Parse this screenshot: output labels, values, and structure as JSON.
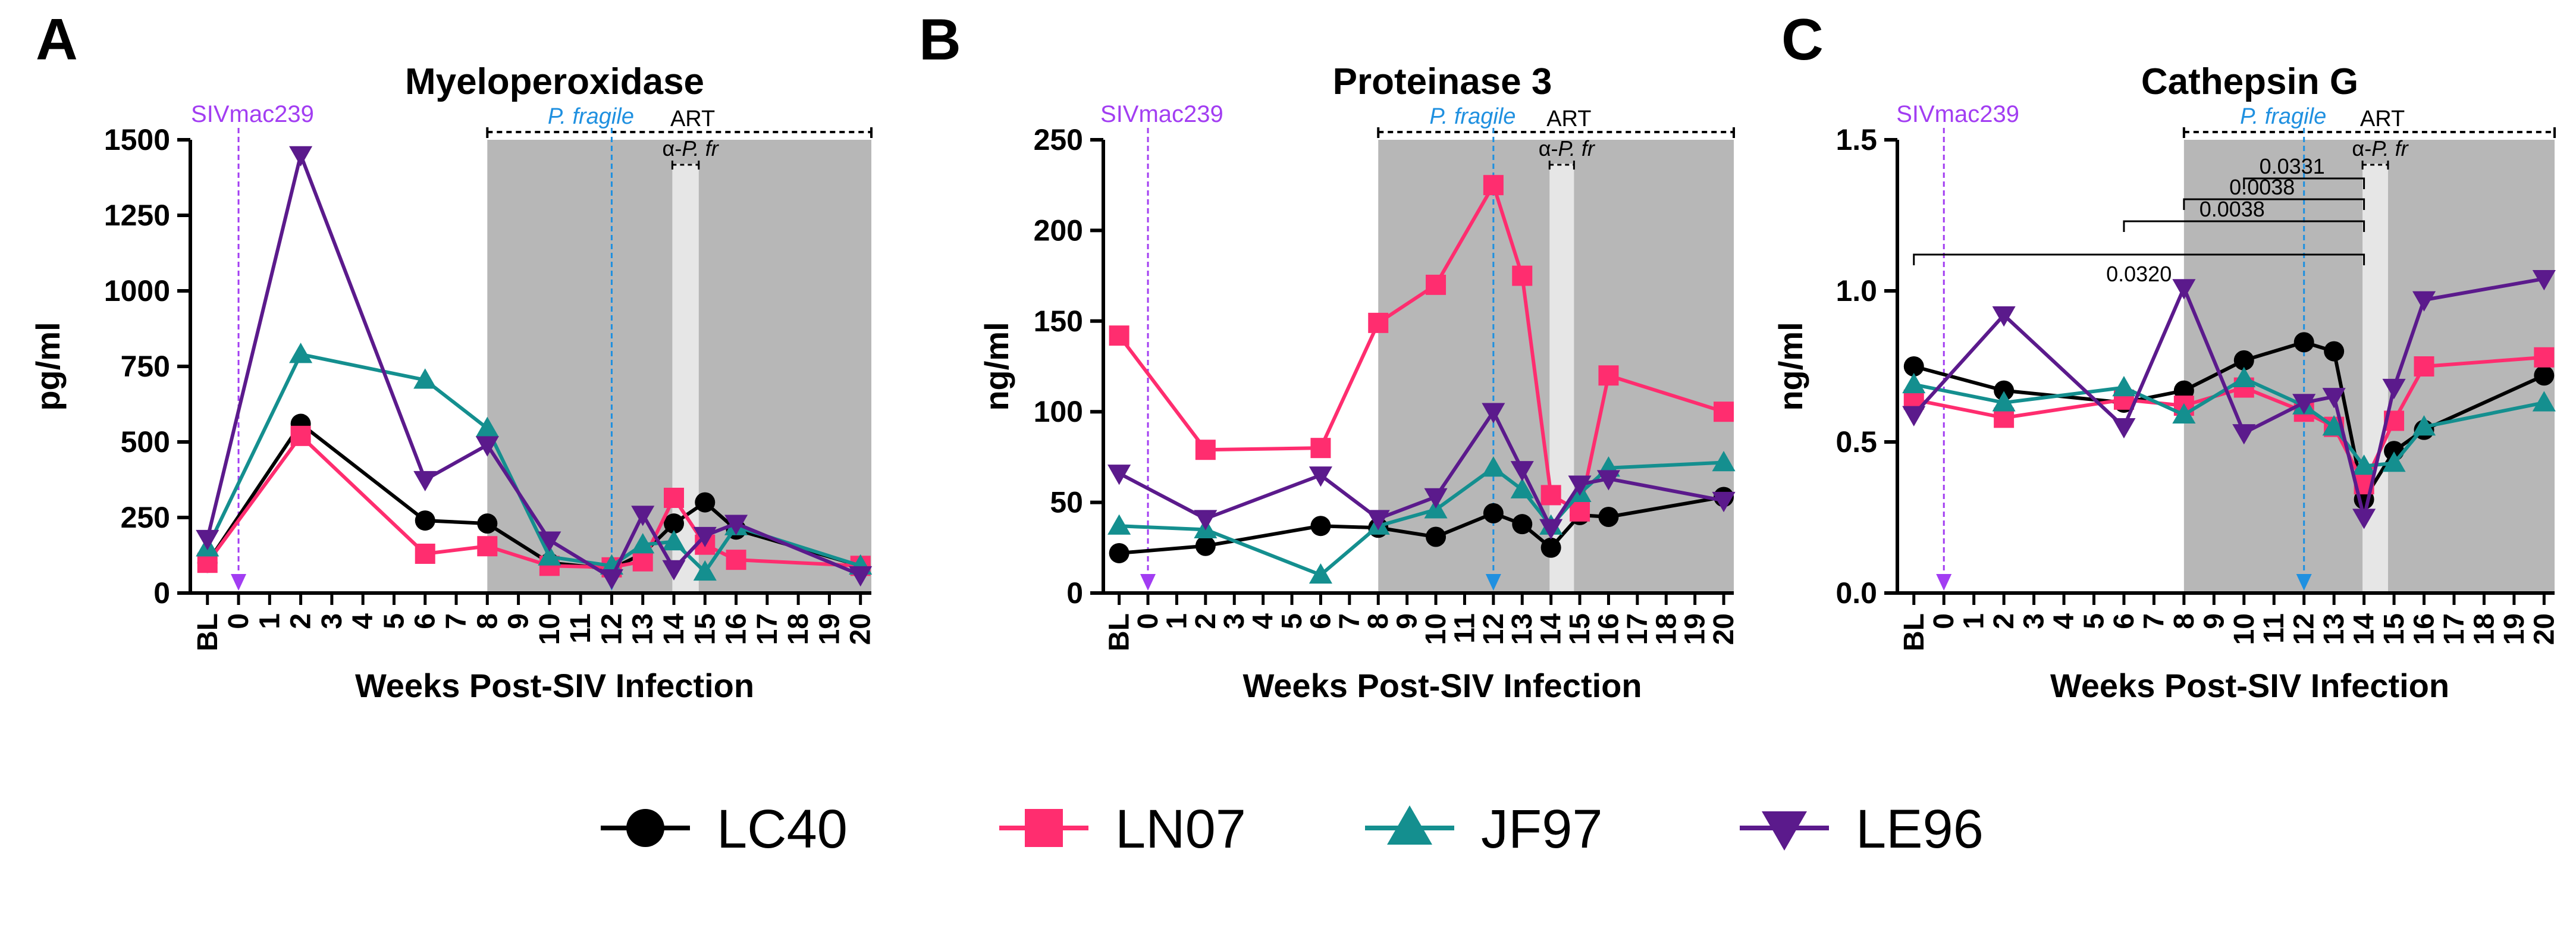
{
  "figure": {
    "colors": {
      "LC40": "#000000",
      "LN07": "#ff2d6f",
      "JF97": "#148f8f",
      "LE96": "#5b1a8c",
      "siv": "#a23df2",
      "pfragile": "#1f90e0",
      "shade": "#b7b7b7",
      "art_band": "#e6e6e6"
    },
    "annotation_labels": {
      "siv": "SIVmac239",
      "pfragile": "P. fragile",
      "art": "ART",
      "apfr_prefix": "α-",
      "apfr_italic": "P. fr"
    }
  },
  "legend": [
    {
      "name": "LC40",
      "marker": "circle"
    },
    {
      "name": "LN07",
      "marker": "square"
    },
    {
      "name": "JF97",
      "marker": "triangle-up"
    },
    {
      "name": "LE96",
      "marker": "triangle-down"
    }
  ],
  "chart_data": [
    {
      "panel": "A",
      "type": "line",
      "title": "Myeloperoxidase",
      "xlabel": "Weeks Post-SIV Infection",
      "ylabel": "pg/ml",
      "ylim": [
        0,
        1500
      ],
      "yticks": [
        0,
        250,
        500,
        750,
        1000,
        1250,
        1500
      ],
      "ytick_labels": [
        "0",
        "250",
        "500",
        "750",
        "1000",
        "1250",
        "1500"
      ],
      "xticks": [
        "BL",
        "0",
        "1",
        "2",
        "3",
        "4",
        "5",
        "6",
        "7",
        "8",
        "9",
        "10",
        "11",
        "12",
        "13",
        "14",
        "15",
        "16",
        "17",
        "18",
        "19",
        "20"
      ],
      "pfragile_period_weeks": [
        8,
        20
      ],
      "art_band_weeks": [
        14,
        15
      ],
      "siv_week": 0,
      "pfragile_week": 12,
      "series": [
        {
          "name": "LC40",
          "x": [
            "BL",
            2,
            6,
            8,
            10,
            12,
            13,
            14,
            15,
            16,
            20
          ],
          "values": [
            100,
            560,
            240,
            230,
            100,
            80,
            130,
            230,
            300,
            210,
            90
          ]
        },
        {
          "name": "LN07",
          "x": [
            "BL",
            2,
            6,
            8,
            10,
            12,
            13,
            14,
            15,
            16,
            20
          ],
          "values": [
            100,
            520,
            130,
            155,
            90,
            85,
            105,
            315,
            160,
            110,
            90
          ]
        },
        {
          "name": "JF97",
          "x": [
            "BL",
            2,
            6,
            8,
            10,
            12,
            13,
            14,
            15,
            16,
            20
          ],
          "values": [
            150,
            790,
            705,
            545,
            120,
            90,
            160,
            170,
            70,
            220,
            90
          ]
        },
        {
          "name": "LE96",
          "x": [
            "BL",
            2,
            6,
            8,
            10,
            12,
            13,
            14,
            15,
            16,
            20
          ],
          "values": [
            180,
            1450,
            375,
            490,
            175,
            50,
            260,
            80,
            190,
            230,
            60
          ]
        }
      ],
      "brackets": []
    },
    {
      "panel": "B",
      "type": "line",
      "title": "Proteinase 3",
      "xlabel": "Weeks Post-SIV Infection",
      "ylabel": "ng/ml",
      "ylim": [
        0,
        250
      ],
      "yticks": [
        0,
        50,
        100,
        150,
        200,
        250
      ],
      "ytick_labels": [
        "0",
        "50",
        "100",
        "150",
        "200",
        "250"
      ],
      "xticks": [
        "BL",
        "0",
        "1",
        "2",
        "3",
        "4",
        "5",
        "6",
        "7",
        "8",
        "9",
        "10",
        "11",
        "12",
        "13",
        "14",
        "15",
        "16",
        "17",
        "18",
        "19",
        "20"
      ],
      "pfragile_period_weeks": [
        8,
        20
      ],
      "art_band_weeks": [
        14,
        15
      ],
      "siv_week": 0,
      "pfragile_week": 12,
      "series": [
        {
          "name": "LC40",
          "x": [
            "BL",
            2,
            6,
            8,
            10,
            12,
            13,
            14,
            15,
            16,
            20
          ],
          "values": [
            22,
            26,
            37,
            36,
            31,
            44,
            38,
            25,
            43,
            42,
            53
          ]
        },
        {
          "name": "LN07",
          "x": [
            "BL",
            2,
            6,
            8,
            10,
            12,
            13,
            14,
            15,
            16,
            20
          ],
          "values": [
            142,
            79,
            80,
            149,
            170,
            225,
            175,
            54,
            45,
            120,
            100
          ]
        },
        {
          "name": "JF97",
          "x": [
            "BL",
            2,
            6,
            8,
            10,
            12,
            13,
            14,
            15,
            16,
            20
          ],
          "values": [
            37,
            35,
            10,
            37,
            46,
            69,
            57,
            37,
            55,
            69,
            72
          ]
        },
        {
          "name": "LE96",
          "x": [
            "BL",
            2,
            6,
            8,
            10,
            12,
            13,
            14,
            15,
            16,
            20
          ],
          "values": [
            66,
            41,
            65,
            41,
            53,
            100,
            68,
            36,
            60,
            63,
            51
          ]
        }
      ],
      "brackets": []
    },
    {
      "panel": "C",
      "type": "line",
      "title": "Cathepsin G",
      "xlabel": "Weeks Post-SIV Infection",
      "ylabel": "ng/ml",
      "ylim": [
        0,
        1.5
      ],
      "yticks": [
        0,
        0.5,
        1.0,
        1.5
      ],
      "ytick_labels": [
        "0.0",
        "0.5",
        "1.0",
        "1.5"
      ],
      "xticks": [
        "BL",
        "0",
        "1",
        "2",
        "3",
        "4",
        "5",
        "6",
        "7",
        "8",
        "9",
        "10",
        "11",
        "12",
        "13",
        "14",
        "15",
        "16",
        "17",
        "18",
        "19",
        "20"
      ],
      "pfragile_period_weeks": [
        8,
        20
      ],
      "art_band_weeks": [
        14,
        15
      ],
      "siv_week": 0,
      "pfragile_week": 12,
      "series": [
        {
          "name": "LC40",
          "x": [
            "BL",
            2,
            6,
            8,
            10,
            12,
            13,
            14,
            15,
            16,
            20
          ],
          "values": [
            0.75,
            0.67,
            0.63,
            0.67,
            0.77,
            0.83,
            0.8,
            0.31,
            0.47,
            0.54,
            0.72
          ]
        },
        {
          "name": "LN07",
          "x": [
            "BL",
            2,
            6,
            8,
            10,
            12,
            13,
            14,
            15,
            16,
            20
          ],
          "values": [
            0.64,
            0.58,
            0.64,
            0.62,
            0.68,
            0.6,
            0.55,
            0.36,
            0.57,
            0.75,
            0.78
          ]
        },
        {
          "name": "JF97",
          "x": [
            "BL",
            2,
            6,
            8,
            10,
            12,
            13,
            14,
            15,
            16,
            20
          ],
          "values": [
            0.69,
            0.63,
            0.68,
            0.59,
            0.71,
            0.62,
            0.55,
            0.42,
            0.43,
            0.55,
            0.63
          ]
        },
        {
          "name": "LE96",
          "x": [
            "BL",
            2,
            6,
            8,
            10,
            12,
            13,
            14,
            15,
            16,
            20
          ],
          "values": [
            0.59,
            0.92,
            0.55,
            1.01,
            0.53,
            0.63,
            0.65,
            0.25,
            0.68,
            0.97,
            1.04
          ]
        }
      ],
      "brackets": [
        {
          "from": 10,
          "to": 14,
          "label": "0.0331"
        },
        {
          "from": 8,
          "to": 14,
          "label": "0.0038"
        },
        {
          "from": 6,
          "to": 14,
          "label": "0.0038"
        },
        {
          "from": "BL",
          "to": 14,
          "label": "0.0320"
        }
      ]
    }
  ]
}
